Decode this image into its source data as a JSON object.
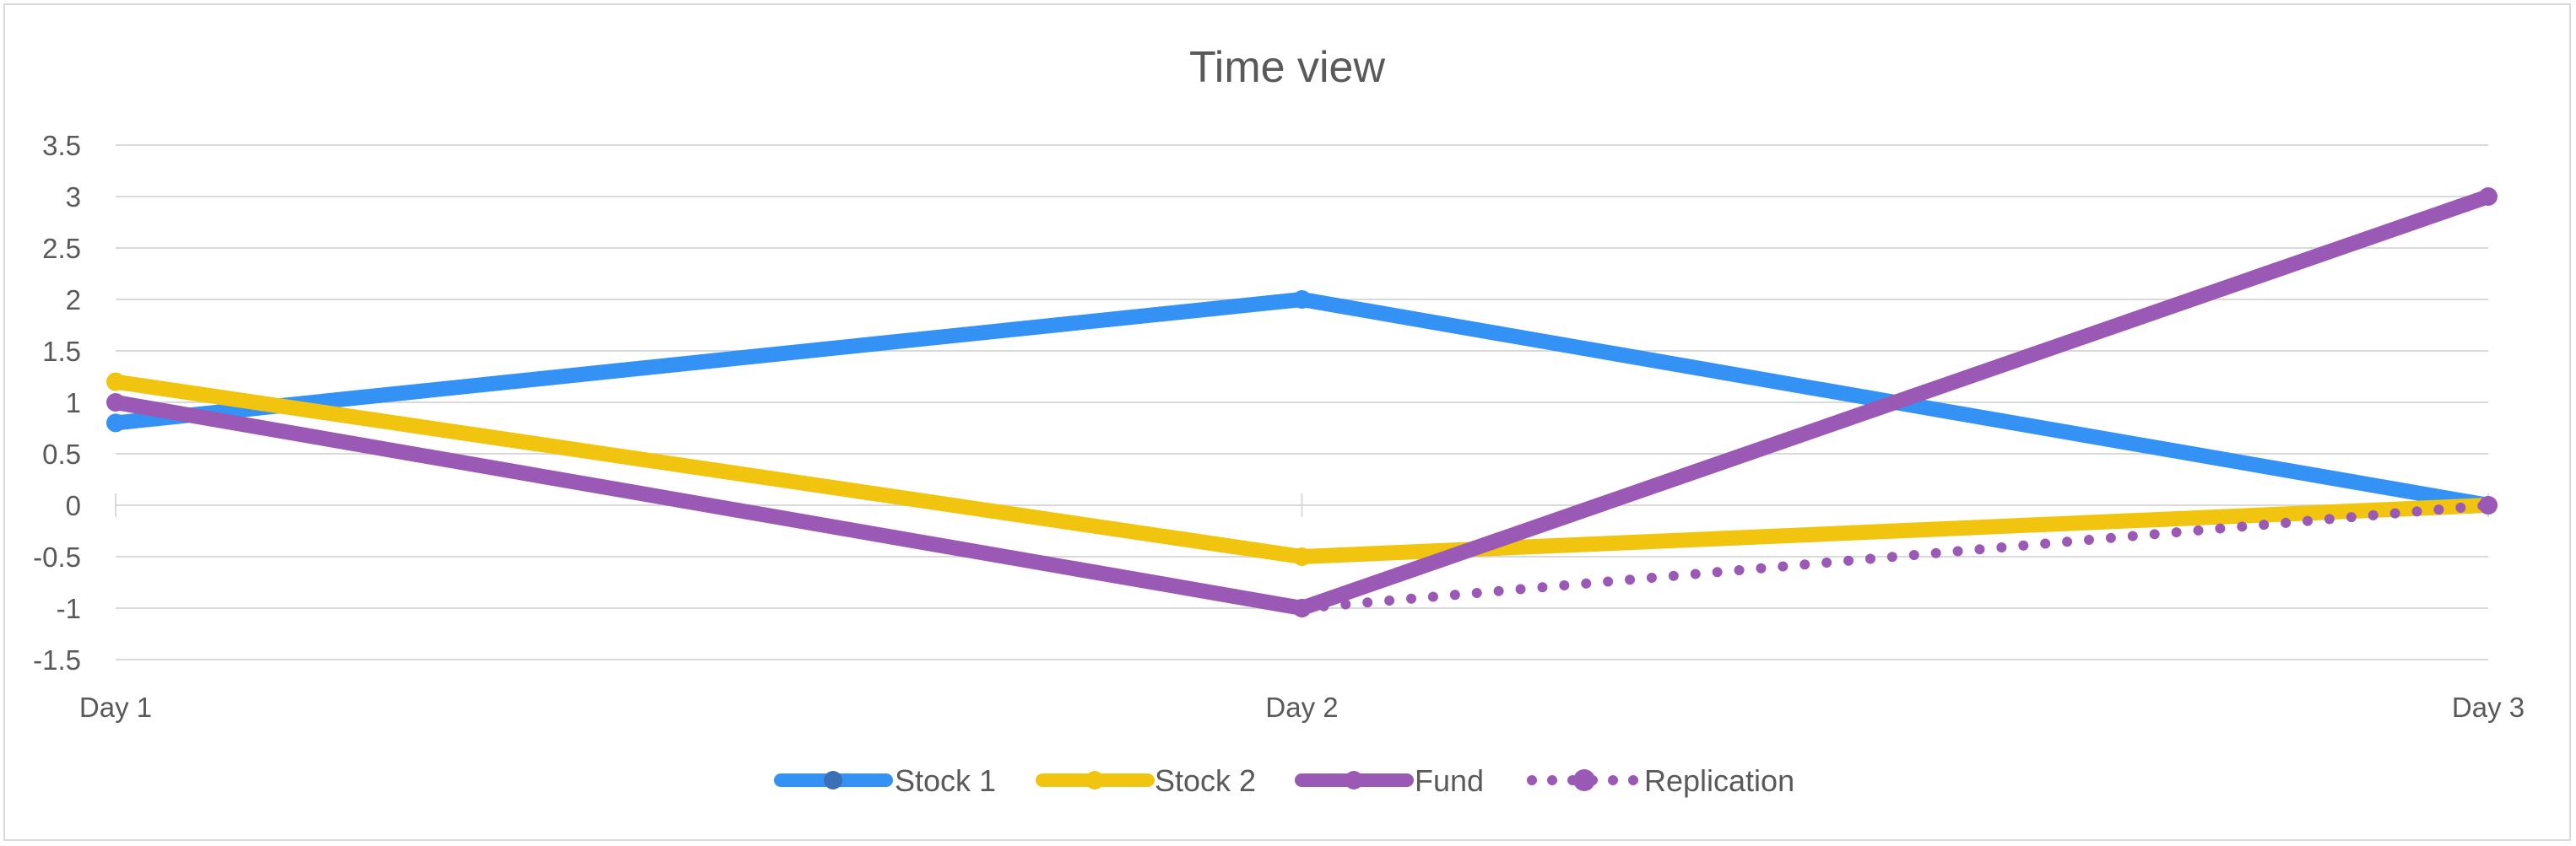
{
  "chart_data": {
    "type": "line",
    "title": "Time view",
    "categories": [
      "Day 1",
      "Day 2",
      "Day 3"
    ],
    "ylim": [
      -1.5,
      3.5
    ],
    "yticks": [
      "3.5",
      "3",
      "2.5",
      "2",
      "1.5",
      "1",
      "0.5",
      "0",
      "-0.5",
      "-1",
      "-1.5"
    ],
    "ytick_values": [
      3.5,
      3,
      2.5,
      2,
      1.5,
      1,
      0.5,
      0,
      -0.5,
      -1,
      -1.5
    ],
    "grid": true,
    "legend": "bottom",
    "series": [
      {
        "name": "Stock 1",
        "values": [
          0.8,
          2,
          0
        ],
        "color": "#3492f5",
        "style": "solid"
      },
      {
        "name": "Stock 2",
        "values": [
          1.2,
          -0.5,
          0
        ],
        "color": "#f1c40f",
        "style": "solid"
      },
      {
        "name": "Fund",
        "values": [
          1,
          -1,
          3
        ],
        "color": "#9b59b6",
        "style": "solid"
      },
      {
        "name": "Replication",
        "values": [
          null,
          -1,
          0
        ],
        "color": "#9b59b6",
        "style": "dotted"
      }
    ]
  }
}
